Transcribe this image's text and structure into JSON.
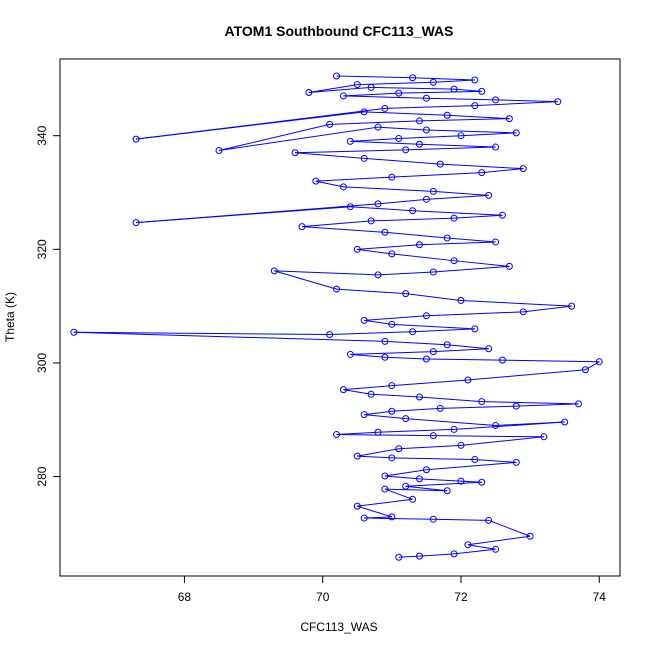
{
  "chart_data": {
    "type": "scatter",
    "title": "ATOM1 Southbound CFC113_WAS",
    "xlabel": "CFC113_WAS",
    "ylabel": "Theta (K)",
    "xlim": [
      66.2,
      74.3
    ],
    "ylim": [
      262.5,
      353.5
    ],
    "x_ticks": [
      68,
      70,
      72,
      74
    ],
    "y_ticks": [
      280,
      300,
      320,
      340
    ],
    "x_tick_labels": [
      "68",
      "70",
      "72",
      "74"
    ],
    "y_tick_labels": [
      "280",
      "300",
      "320",
      "340"
    ],
    "grid": false,
    "legend": "none",
    "color": "#0000ff",
    "series": [
      {
        "name": "CFC113_WAS",
        "style": "points-connected-by-lines",
        "x": [
          71.1,
          71.4,
          71.9,
          72.5,
          72.1,
          73.0,
          72.4,
          71.6,
          70.6,
          71.0,
          70.5,
          71.3,
          70.9,
          71.8,
          71.2,
          72.3,
          72.0,
          71.4,
          70.9,
          71.5,
          72.8,
          72.2,
          71.0,
          70.5,
          71.1,
          72.0,
          73.2,
          71.6,
          70.2,
          70.8,
          71.9,
          73.5,
          72.5,
          71.2,
          70.6,
          71.0,
          71.7,
          72.8,
          73.7,
          72.3,
          71.4,
          70.7,
          70.3,
          71.0,
          72.1,
          73.8,
          74.0,
          72.6,
          71.5,
          70.9,
          70.4,
          71.6,
          72.4,
          71.8,
          70.9,
          66.4,
          70.1,
          71.3,
          72.2,
          71.0,
          70.6,
          71.5,
          72.9,
          73.6,
          72.0,
          71.2,
          70.2,
          69.3,
          70.8,
          71.6,
          72.7,
          71.9,
          71.0,
          70.5,
          71.4,
          72.5,
          71.8,
          70.9,
          69.7,
          70.7,
          71.9,
          72.6,
          71.3,
          70.4,
          67.3,
          70.8,
          71.5,
          72.4,
          71.6,
          70.3,
          69.9,
          71.0,
          72.3,
          72.9,
          71.7,
          70.6,
          69.6,
          71.2,
          72.5,
          71.4,
          70.4,
          71.1,
          72.0,
          72.8,
          71.5,
          70.8,
          68.5,
          70.1,
          71.4,
          72.7,
          71.8,
          70.6,
          67.3,
          70.9,
          72.2,
          73.4,
          72.5,
          71.5,
          70.3,
          71.1,
          72.3,
          71.9,
          70.7,
          69.8,
          70.5,
          71.6,
          72.2,
          71.3,
          70.2
        ],
        "y": [
          265.8,
          266.0,
          266.4,
          267.2,
          268.0,
          269.5,
          272.3,
          272.5,
          272.7,
          272.9,
          274.8,
          276.0,
          277.8,
          277.5,
          278.3,
          279.0,
          279.2,
          279.6,
          280.1,
          281.2,
          282.5,
          283.0,
          283.3,
          283.6,
          284.9,
          285.5,
          287.0,
          287.2,
          287.4,
          287.8,
          288.3,
          289.6,
          289.0,
          290.2,
          290.9,
          291.5,
          292.0,
          292.4,
          292.8,
          293.2,
          294.0,
          294.5,
          295.3,
          296.0,
          297.0,
          298.8,
          300.2,
          300.5,
          300.7,
          301.0,
          301.5,
          302.0,
          302.5,
          303.2,
          303.8,
          305.4,
          305.0,
          305.5,
          306.0,
          306.8,
          307.5,
          308.3,
          309.0,
          310.0,
          311.0,
          312.2,
          313.0,
          316.2,
          315.5,
          316.0,
          317.0,
          318.0,
          319.2,
          320.0,
          320.8,
          321.3,
          322.0,
          323.0,
          324.0,
          325.0,
          325.5,
          326.0,
          326.8,
          327.5,
          324.7,
          328.0,
          328.8,
          329.5,
          330.2,
          331.0,
          332.0,
          332.7,
          333.5,
          334.2,
          335.0,
          336.0,
          337.0,
          337.5,
          338.0,
          338.5,
          339.0,
          339.5,
          340.0,
          340.5,
          341.0,
          341.5,
          337.4,
          342.0,
          342.6,
          343.0,
          343.6,
          344.2,
          339.4,
          344.8,
          345.3,
          346.0,
          346.3,
          346.6,
          347.0,
          347.5,
          347.8,
          348.2,
          348.5,
          347.6,
          349.0,
          349.4,
          349.8,
          350.2,
          350.5
        ]
      }
    ]
  }
}
